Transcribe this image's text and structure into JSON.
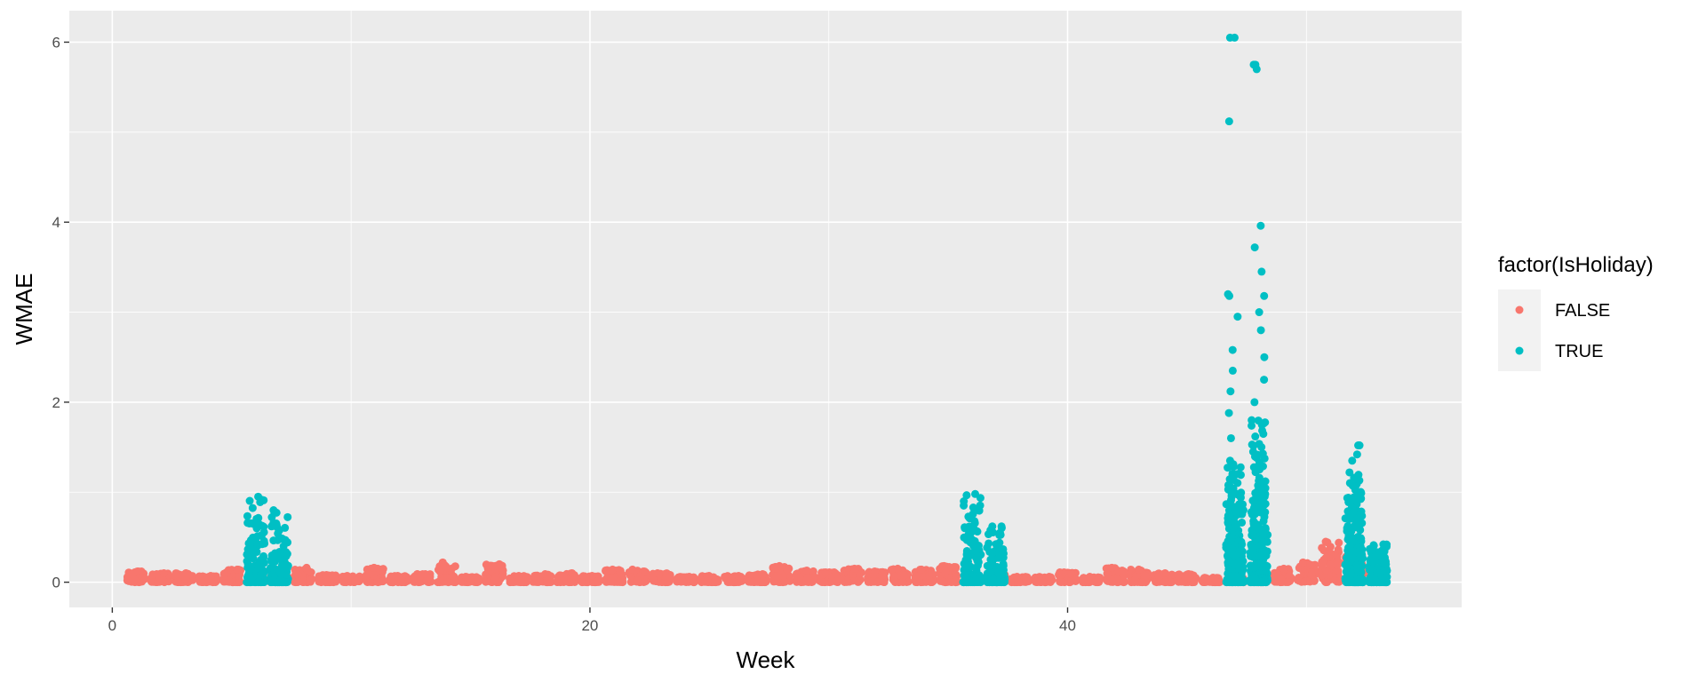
{
  "chart_data": {
    "type": "scatter",
    "xlabel": "Week",
    "ylabel": "WMAE",
    "xlim": [
      -1.8,
      56.5
    ],
    "ylim": [
      -0.28,
      6.35
    ],
    "xticks": [
      0,
      20,
      40
    ],
    "yticks": [
      0,
      2,
      4,
      6
    ],
    "grid": true,
    "legend": {
      "title": "factor(IsHoliday)",
      "position": "right",
      "entries": [
        {
          "label": "FALSE",
          "color": "#F8766D"
        },
        {
          "label": "TRUE",
          "color": "#00BFC4"
        }
      ]
    },
    "series": [
      {
        "name": "FALSE",
        "color": "#F8766D",
        "weeks": [
          1,
          2,
          3,
          4,
          5,
          7,
          8,
          9,
          10,
          11,
          12,
          13,
          14,
          15,
          16,
          17,
          18,
          19,
          20,
          21,
          22,
          23,
          24,
          25,
          26,
          27,
          28,
          29,
          30,
          31,
          32,
          33,
          34,
          35,
          37,
          38,
          39,
          40,
          41,
          42,
          43,
          44,
          45,
          46,
          47,
          48,
          49,
          50,
          51,
          52,
          53
        ],
        "max_values": [
          0.12,
          0.1,
          0.1,
          0.07,
          0.14,
          0.07,
          0.16,
          0.08,
          0.07,
          0.16,
          0.07,
          0.09,
          0.22,
          0.06,
          0.2,
          0.07,
          0.09,
          0.1,
          0.07,
          0.14,
          0.14,
          0.1,
          0.06,
          0.07,
          0.07,
          0.09,
          0.18,
          0.13,
          0.11,
          0.15,
          0.12,
          0.15,
          0.14,
          0.18,
          0.09,
          0.06,
          0.06,
          0.11,
          0.06,
          0.16,
          0.14,
          0.1,
          0.09,
          0.05,
          0.06,
          0.06,
          0.15,
          0.22,
          0.45,
          0.3,
          0.1
        ]
      },
      {
        "name": "TRUE",
        "color": "#00BFC4",
        "weeks": [
          6,
          7,
          36,
          37,
          47,
          48,
          52,
          53
        ],
        "max_values": [
          0.95,
          0.8,
          0.98,
          0.62,
          6.05,
          5.75,
          1.52,
          0.42
        ],
        "outliers": [
          {
            "week": 47,
            "values": [
              6.05,
              5.12,
              3.2,
              3.18,
              2.95,
              2.58,
              2.35,
              2.12,
              1.88,
              1.6,
              1.35
            ]
          },
          {
            "week": 48,
            "values": [
              5.75,
              5.7,
              3.96,
              3.72,
              3.45,
              3.18,
              3.0,
              2.8,
              2.5,
              2.25,
              2.0,
              1.8
            ]
          },
          {
            "week": 52,
            "values": [
              1.52,
              1.42,
              1.35,
              1.22
            ]
          }
        ]
      }
    ]
  }
}
